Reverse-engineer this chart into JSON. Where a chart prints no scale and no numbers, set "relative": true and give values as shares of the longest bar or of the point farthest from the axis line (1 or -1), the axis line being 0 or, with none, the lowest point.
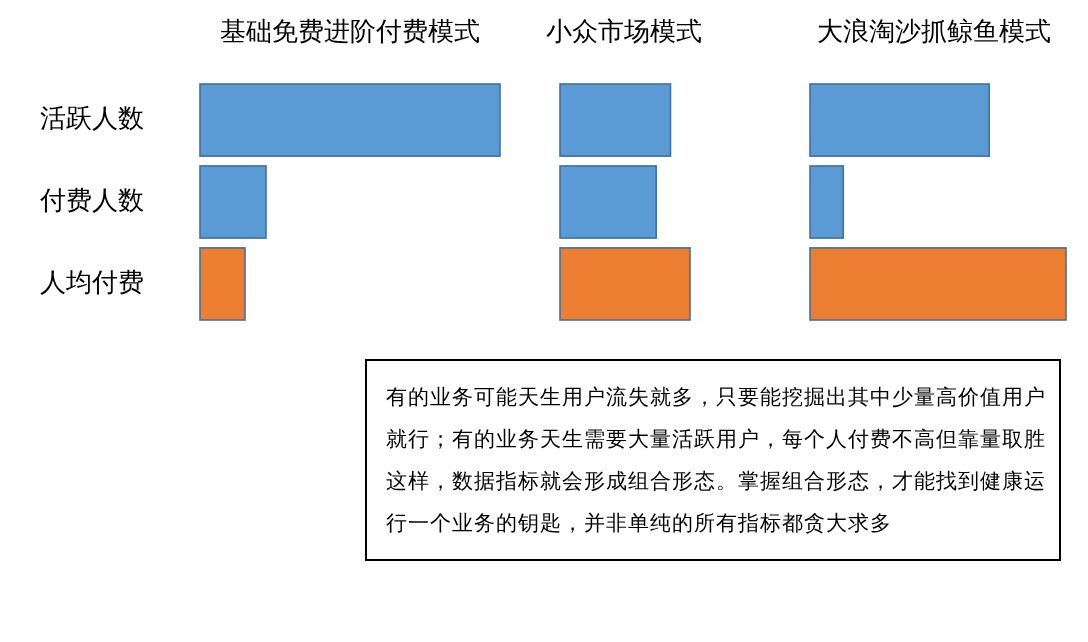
{
  "chart_data": [
    {
      "type": "bar",
      "orientation": "horizontal",
      "relative": true,
      "title": "基础免费进阶付费模式",
      "categories": [
        "活跃人数",
        "付费人数",
        "人均付费"
      ],
      "values": [
        1,
        0.22,
        0.15
      ],
      "colors": [
        "#5b9bd5",
        "#5b9bd5",
        "#ed7d31"
      ],
      "tick_labels": "y"
    },
    {
      "type": "bar",
      "orientation": "horizontal",
      "relative": true,
      "title": "小众市场模式",
      "categories": [
        null,
        null,
        null
      ],
      "values": [
        0.85,
        0.74,
        1
      ],
      "colors": [
        "#5b9bd5",
        "#5b9bd5",
        "#ed7d31"
      ]
    },
    {
      "type": "bar",
      "orientation": "horizontal",
      "relative": true,
      "title": "大浪淘沙抓鲸鱼模式",
      "categories": [
        null,
        null,
        null
      ],
      "values": [
        0.7,
        0.13,
        1
      ],
      "colors": [
        "#5b9bd5",
        "#5b9bd5",
        "#ed7d31"
      ]
    },
    {
      "type": "other",
      "annotations": [
        "有的业务可能天生用户流失就多，只要能挖掘出其中少量高价值用户就行；有的业务天生需要大量活跃用户，每个人付费不高但靠量取胜这样，数据指标就会形成组合形态。掌握组合形态，才能找到健康运行一个业务的钥匙，并非单纯的所有指标都贪大求多"
      ]
    }
  ]
}
